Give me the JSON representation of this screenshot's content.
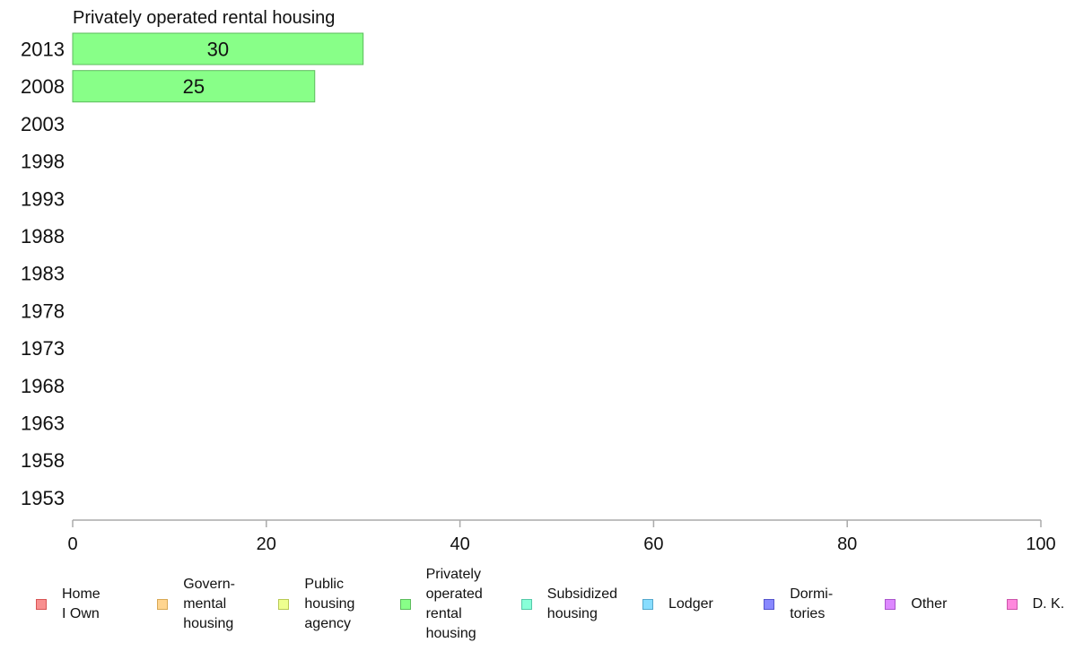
{
  "chart_data": {
    "type": "bar",
    "orientation": "horizontal",
    "title": "Privately operated rental housing",
    "categories": [
      "2013",
      "2008",
      "2003",
      "1998",
      "1993",
      "1988",
      "1983",
      "1978",
      "1973",
      "1968",
      "1963",
      "1958",
      "1953"
    ],
    "series": [
      {
        "name": "Privately operated rental housing",
        "values": [
          30,
          25,
          null,
          null,
          null,
          null,
          null,
          null,
          null,
          null,
          null,
          null,
          null
        ]
      }
    ],
    "data_labels": [
      "30",
      "25"
    ],
    "xlim": [
      0,
      100
    ],
    "xticks": [
      0,
      20,
      40,
      60,
      80,
      100
    ],
    "bar_color": "#88ff88",
    "bar_border": "#5dbb5d",
    "legend_position": "bottom",
    "legend": [
      {
        "label": "Home\nI Own",
        "fill": "#f88f8f",
        "border": "#d85555"
      },
      {
        "label": "Govern-\nmental\n housing",
        "fill": "#ffd58f",
        "border": "#d8a855"
      },
      {
        "label": "Public\nhousing\nagency",
        "fill": "#eeff8f",
        "border": "#b8c855"
      },
      {
        "label": "Privately\noperated\nrental\nhousing",
        "fill": "#88ff88",
        "border": "#5dbb5d"
      },
      {
        "label": "Subsidized\n housing",
        "fill": "#88ffd8",
        "border": "#55c8a8"
      },
      {
        "label": "Lodger",
        "fill": "#88ddff",
        "border": "#55a8cc"
      },
      {
        "label": "Dormi-\ntories",
        "fill": "#8888ff",
        "border": "#5555cc"
      },
      {
        "label": "Other",
        "fill": "#dd88ff",
        "border": "#aa55cc"
      },
      {
        "label": "D. K.",
        "fill": "#ff88dd",
        "border": "#cc55aa"
      }
    ]
  }
}
